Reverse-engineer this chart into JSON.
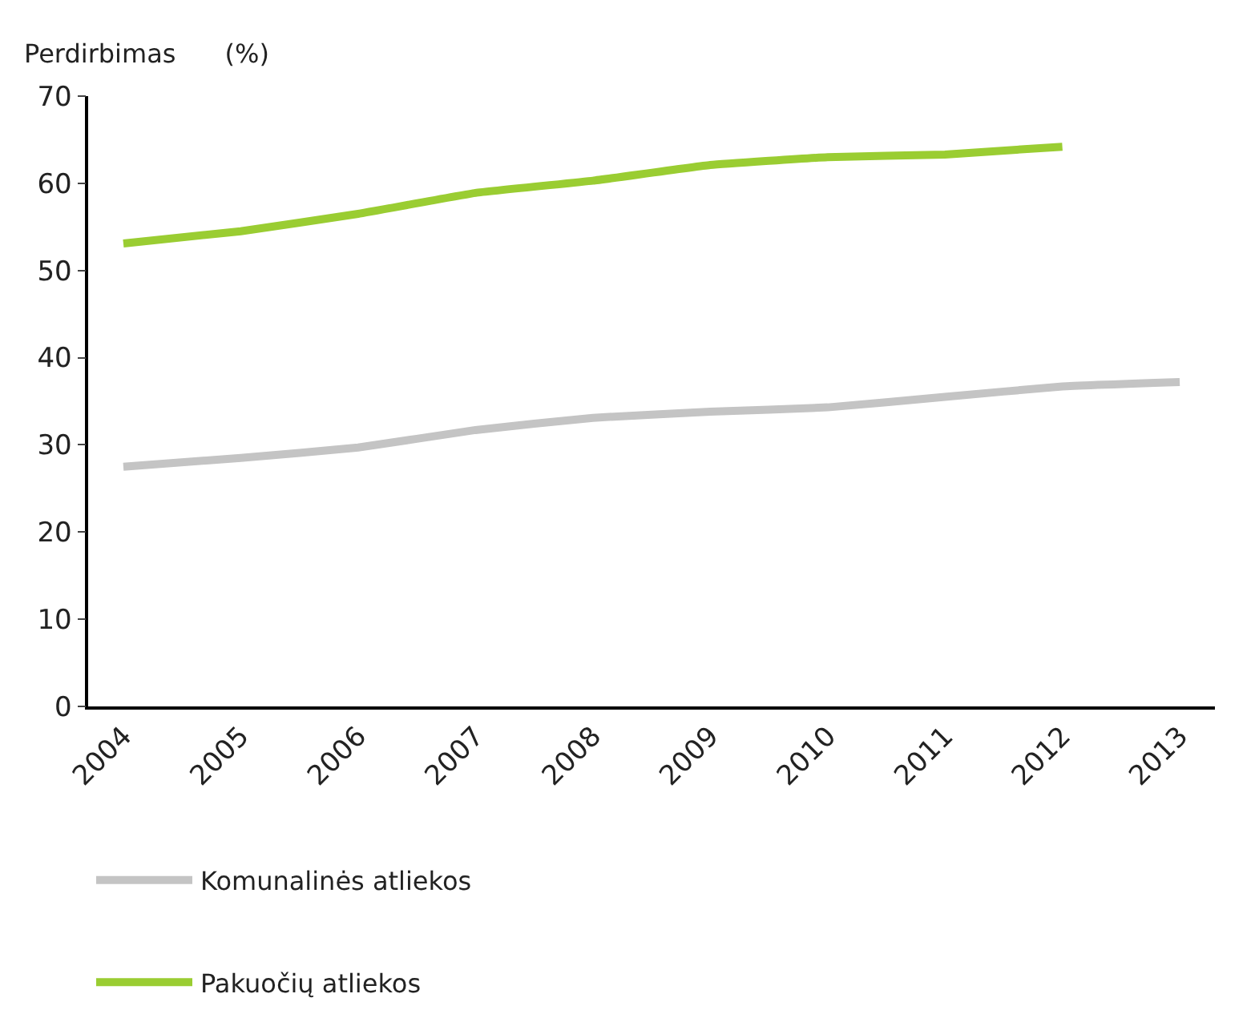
{
  "chart_data": {
    "type": "line",
    "ylabel": "Perdirbimas      (%)",
    "categories": [
      "2004",
      "2005",
      "2006",
      "2007",
      "2008",
      "2009",
      "2010",
      "2011",
      "2012",
      "2013"
    ],
    "series": [
      {
        "name": "Komunalinės atliekos",
        "color": "#c4c4c4",
        "values": [
          27.5,
          28.5,
          29.7,
          31.7,
          33.1,
          33.8,
          34.3,
          35.5,
          36.7,
          37.2
        ]
      },
      {
        "name": "Pakuočių atliekos",
        "color": "#9acd32",
        "values": [
          53.1,
          54.5,
          56.5,
          58.9,
          60.3,
          62.1,
          63.0,
          63.3,
          64.2,
          null
        ]
      }
    ],
    "ylim": [
      0,
      70
    ],
    "yticks": [
      0,
      10,
      20,
      30,
      40,
      50,
      60,
      70
    ],
    "grid": false,
    "legend": "bottom left",
    "marker": "none",
    "line_style": "solid"
  }
}
